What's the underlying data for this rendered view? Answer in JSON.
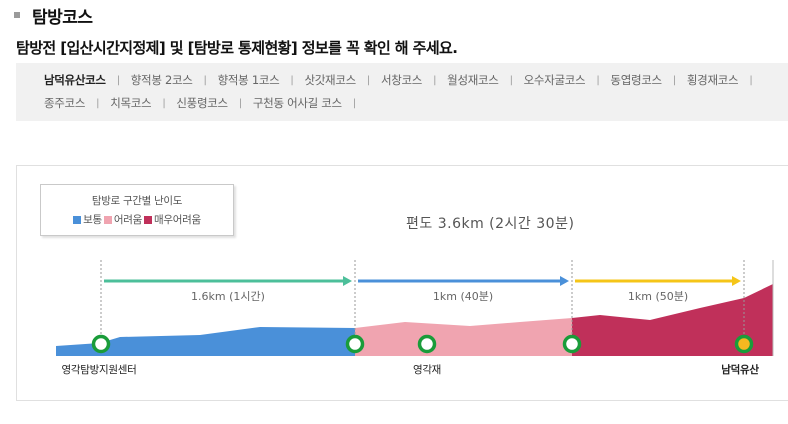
{
  "section": {
    "title": "탐방코스"
  },
  "notice": "탐방전 [입산시간지정제] 및 [탐방로 통제현황] 정보를 꼭 확인 해 주세요.",
  "tabs": [
    {
      "label": "남덕유산코스",
      "active": true
    },
    {
      "label": "향적봉 2코스"
    },
    {
      "label": "향적봉 1코스"
    },
    {
      "label": "삿갓재코스"
    },
    {
      "label": "서창코스"
    },
    {
      "label": "월성재코스"
    },
    {
      "label": "오수자굴코스"
    },
    {
      "label": "동엽령코스"
    },
    {
      "label": "횡경재코스"
    },
    {
      "label": "종주코스"
    },
    {
      "label": "치목코스"
    },
    {
      "label": "신풍령코스"
    },
    {
      "label": "구천동 어사길 코스"
    }
  ],
  "legend": {
    "title": "탐방로 구간별 난이도",
    "items": [
      {
        "label": "보통",
        "color": "#4a90d9"
      },
      {
        "label": "어려움",
        "color": "#f0a4b0"
      },
      {
        "label": "매우어려움",
        "color": "#c0305a"
      }
    ]
  },
  "total": "편도 3.6km (2시간 30분)",
  "segments": [
    {
      "label": "1.6km (1시간)",
      "arrow_color": "#4cbf9a",
      "difficulty": "보통"
    },
    {
      "label": "1km (40분)",
      "arrow_color": "#4a90d9",
      "difficulty": "어려움"
    },
    {
      "label": "1km (50분)",
      "arrow_color": "#f5c518",
      "difficulty": "매우어려움"
    }
  ],
  "points": [
    {
      "label": "영각탐방지원센터"
    },
    {
      "label": ""
    },
    {
      "label": "영각재"
    },
    {
      "label": ""
    },
    {
      "label": "남덕유산"
    }
  ]
}
